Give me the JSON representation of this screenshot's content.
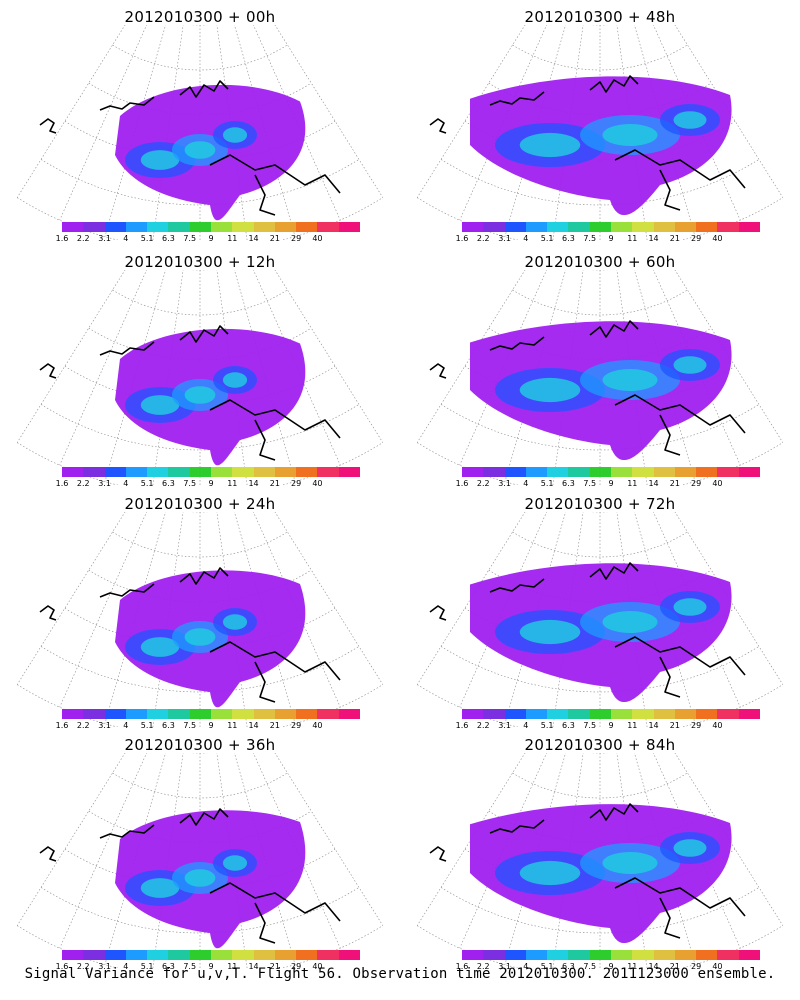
{
  "caption": "Signal Variance for u,v,T. Flight 56. Observation time 2012010300. 2011123000 ensemble.",
  "colorbar": {
    "labels": [
      "1.6",
      "2.2",
      "3.1",
      "4",
      "5.1",
      "6.3",
      "7.5",
      "9",
      "11",
      "14",
      "21",
      "29",
      "40"
    ],
    "colors": [
      "#a020f0",
      "#7b2fe0",
      "#1f55ff",
      "#1e9bff",
      "#1fd0e0",
      "#1fc9a0",
      "#2ccd2c",
      "#9ae03a",
      "#d0e040",
      "#e0c040",
      "#e8a030",
      "#f07020",
      "#f03060",
      "#f0107a"
    ]
  },
  "panels": [
    {
      "title": "2012010300 + 00h",
      "spread": 0.45,
      "intensity": 0.55
    },
    {
      "title": "2012010300 + 48h",
      "spread": 0.85,
      "intensity": 0.6
    },
    {
      "title": "2012010300 + 12h",
      "spread": 0.55,
      "intensity": 0.65
    },
    {
      "title": "2012010300 + 60h",
      "spread": 0.9,
      "intensity": 0.6
    },
    {
      "title": "2012010300 + 24h",
      "spread": 0.6,
      "intensity": 0.7
    },
    {
      "title": "2012010300 + 72h",
      "spread": 0.9,
      "intensity": 0.65
    },
    {
      "title": "2012010300 + 36h",
      "spread": 0.7,
      "intensity": 0.65
    },
    {
      "title": "2012010300 + 84h",
      "spread": 0.95,
      "intensity": 0.7
    }
  ]
}
